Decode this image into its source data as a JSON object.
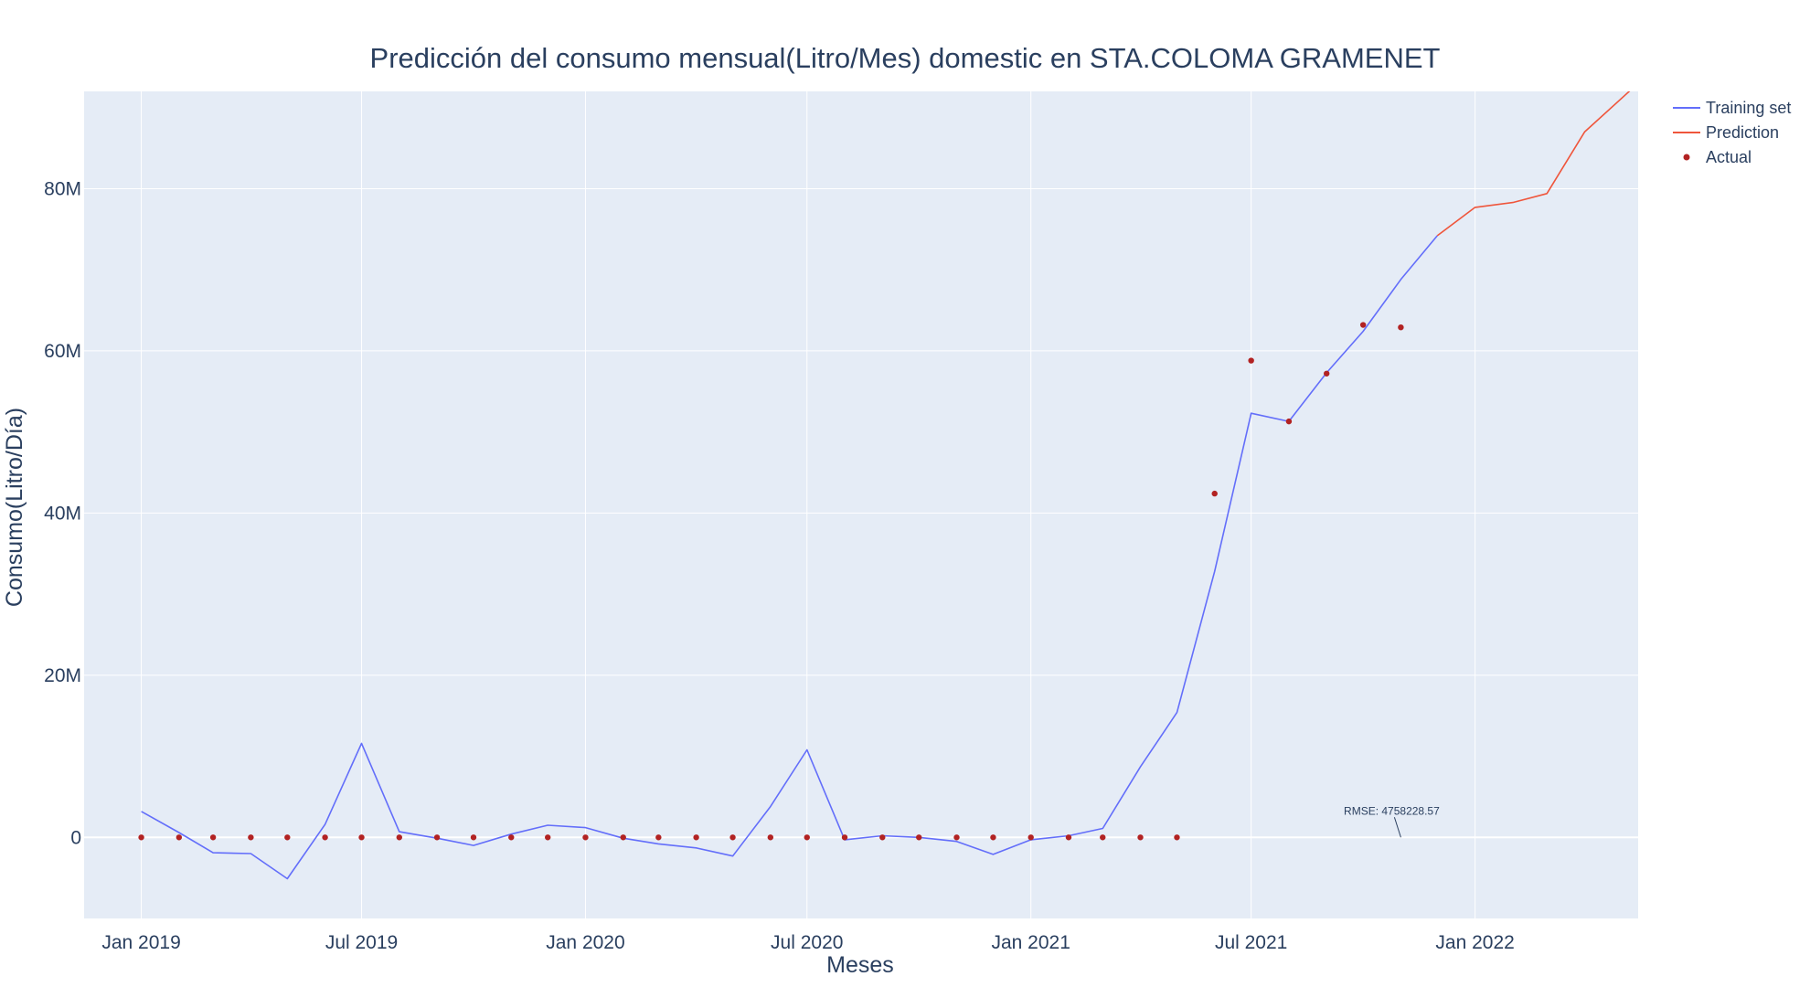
{
  "chart_data": {
    "type": "line",
    "title": "Predicción del consumo mensual(Litro/Mes) domestic en STA.COLOMA GRAMENET",
    "xlabel": "Meses",
    "ylabel": "Consumo(Litro/Día)",
    "x_ticks": [
      {
        "date": "2019-01-01",
        "label": "Jan 2019"
      },
      {
        "date": "2019-07-01",
        "label": "Jul 2019"
      },
      {
        "date": "2020-01-01",
        "label": "Jan 2020"
      },
      {
        "date": "2020-07-01",
        "label": "Jul 2020"
      },
      {
        "date": "2021-01-01",
        "label": "Jan 2021"
      },
      {
        "date": "2021-07-01",
        "label": "Jul 2021"
      },
      {
        "date": "2022-01-01",
        "label": "Jan 2022"
      }
    ],
    "y_ticks": [
      {
        "value": 0,
        "label": "0"
      },
      {
        "value": 20000000,
        "label": "20M"
      },
      {
        "value": 40000000,
        "label": "40M"
      },
      {
        "value": 60000000,
        "label": "60M"
      },
      {
        "value": 80000000,
        "label": "80M"
      }
    ],
    "xlim": [
      "2018-11-15",
      "2022-05-15"
    ],
    "ylim": [
      -10000000,
      92000000
    ],
    "grid": true,
    "legend_position": "top-right",
    "colors": {
      "plot_bg": "#e5ecf6",
      "grid": "#ffffff",
      "training": "#636efa",
      "prediction": "#ef553b",
      "actual": "#b22222"
    },
    "series": [
      {
        "name": "Training set",
        "mode": "line",
        "x": [
          "2019-01-01",
          "2019-02-01",
          "2019-03-01",
          "2019-04-01",
          "2019-05-01",
          "2019-06-01",
          "2019-07-01",
          "2019-08-01",
          "2019-09-01",
          "2019-10-01",
          "2019-11-01",
          "2019-12-01",
          "2020-01-01",
          "2020-02-01",
          "2020-03-01",
          "2020-04-01",
          "2020-05-01",
          "2020-06-01",
          "2020-07-01",
          "2020-08-01",
          "2020-09-01",
          "2020-10-01",
          "2020-11-01",
          "2020-12-01",
          "2021-01-01",
          "2021-02-01",
          "2021-03-01",
          "2021-04-01",
          "2021-05-01",
          "2021-06-01",
          "2021-07-01",
          "2021-08-01",
          "2021-09-01",
          "2021-10-01",
          "2021-11-01",
          "2021-12-01"
        ],
        "y": [
          3200000,
          600000,
          -1900000,
          -2000000,
          -5100000,
          1600000,
          11600000,
          700000,
          -100000,
          -1000000,
          400000,
          1500000,
          1200000,
          -100000,
          -800000,
          -1300000,
          -2300000,
          3800000,
          10800000,
          -300000,
          200000,
          0,
          -500000,
          -2100000,
          -300000,
          200000,
          1100000,
          8700000,
          15400000,
          32800000,
          52300000,
          51300000,
          57300000,
          62400000,
          68800000,
          74200000
        ]
      },
      {
        "name": "Prediction",
        "mode": "line",
        "x": [
          "2021-12-01",
          "2022-01-01",
          "2022-02-01",
          "2022-03-01",
          "2022-04-01",
          "2022-05-15"
        ],
        "y": [
          74200000,
          77700000,
          78300000,
          79400000,
          87000000,
          93000000
        ]
      },
      {
        "name": "Actual",
        "mode": "markers",
        "x": [
          "2019-01-01",
          "2019-02-01",
          "2019-03-01",
          "2019-04-01",
          "2019-05-01",
          "2019-06-01",
          "2019-07-01",
          "2019-08-01",
          "2019-09-01",
          "2019-10-01",
          "2019-11-01",
          "2019-12-01",
          "2020-01-01",
          "2020-02-01",
          "2020-03-01",
          "2020-04-01",
          "2020-05-01",
          "2020-06-01",
          "2020-07-01",
          "2020-08-01",
          "2020-09-01",
          "2020-10-01",
          "2020-11-01",
          "2020-12-01",
          "2021-01-01",
          "2021-02-01",
          "2021-03-01",
          "2021-04-01",
          "2021-05-01",
          "2021-06-01",
          "2021-07-01",
          "2021-08-01",
          "2021-09-01",
          "2021-10-01",
          "2021-11-01"
        ],
        "y": [
          0,
          0,
          0,
          0,
          0,
          0,
          0,
          0,
          0,
          0,
          0,
          0,
          0,
          0,
          0,
          0,
          0,
          0,
          0,
          0,
          0,
          0,
          0,
          0,
          0,
          0,
          0,
          0,
          0,
          42400000,
          58800000,
          51300000,
          57200000,
          63200000,
          62900000
        ]
      }
    ],
    "annotation": {
      "text": "RMSE: 4758228.57",
      "x": "2021-11-01",
      "y": 0
    }
  }
}
